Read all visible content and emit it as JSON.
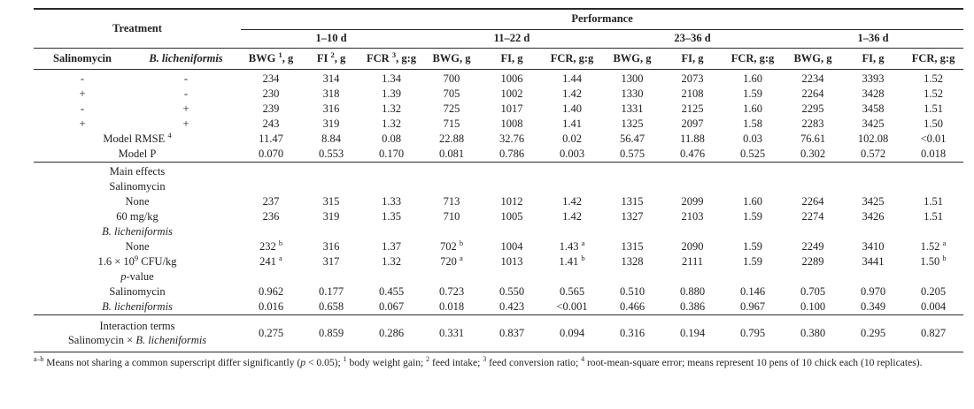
{
  "header": {
    "treatment": "Treatment",
    "performance": "Performance",
    "periods": [
      "1–10 d",
      "11–22 d",
      "23–36 d",
      "1–36 d"
    ],
    "treatment_cols": [
      "Salinomycin",
      "~{B. licheniformis}"
    ],
    "metric_cols": [
      "BWG ^{1}, g",
      "FI ^{2}, g",
      "FCR ^{3}, g:g",
      "BWG, g",
      "FI, g",
      "FCR, g:g",
      "BWG, g",
      "FI, g",
      "FCR, g:g",
      "BWG, g",
      "FI, g",
      "FCR, g:g"
    ]
  },
  "sections": {
    "treatment_means": {
      "rows": [
        {
          "sal": "-",
          "bl": "-",
          "values": [
            "234",
            "314",
            "1.34",
            "700",
            "1006",
            "1.44",
            "1300",
            "2073",
            "1.60",
            "2234",
            "3393",
            "1.52"
          ]
        },
        {
          "sal": "+",
          "bl": "-",
          "values": [
            "230",
            "318",
            "1.39",
            "705",
            "1002",
            "1.42",
            "1330",
            "2108",
            "1.59",
            "2264",
            "3428",
            "1.52"
          ]
        },
        {
          "sal": "-",
          "bl": "+",
          "values": [
            "239",
            "316",
            "1.32",
            "725",
            "1017",
            "1.40",
            "1331",
            "2125",
            "1.60",
            "2295",
            "3458",
            "1.51"
          ]
        },
        {
          "sal": "+",
          "bl": "+",
          "values": [
            "243",
            "319",
            "1.32",
            "715",
            "1008",
            "1.41",
            "1325",
            "2097",
            "1.58",
            "2283",
            "3425",
            "1.50"
          ]
        },
        {
          "label": "Model RMSE ^{4}",
          "values": [
            "11.47",
            "8.84",
            "0.08",
            "22.88",
            "32.76",
            "0.02",
            "56.47",
            "11.88",
            "0.03",
            "76.61",
            "102.08",
            "<0.01"
          ]
        },
        {
          "label": "Model P",
          "values": [
            "0.070",
            "0.553",
            "0.170",
            "0.081",
            "0.786",
            "0.003",
            "0.575",
            "0.476",
            "0.525",
            "0.302",
            "0.572",
            "0.018"
          ]
        }
      ]
    },
    "main_effects": {
      "rows": [
        {
          "label": "Main effects",
          "values": []
        },
        {
          "label": "Salinomycin",
          "values": []
        },
        {
          "label": "None",
          "values": [
            "237",
            "315",
            "1.33",
            "713",
            "1012",
            "1.42",
            "1315",
            "2099",
            "1.60",
            "2264",
            "3425",
            "1.51"
          ]
        },
        {
          "label": "60 mg/kg",
          "values": [
            "236",
            "319",
            "1.35",
            "710",
            "1005",
            "1.42",
            "1327",
            "2103",
            "1.59",
            "2274",
            "3426",
            "1.51"
          ]
        },
        {
          "label": "~{B. licheniformis}",
          "values": []
        },
        {
          "label": "None",
          "values": [
            "232 ^{b}",
            "316",
            "1.37",
            "702 ^{b}",
            "1004",
            "1.43 ^{a}",
            "1315",
            "2090",
            "1.59",
            "2249",
            "3410",
            "1.52 ^{a}"
          ]
        },
        {
          "label": "1.6 × 10^{9} CFU/kg",
          "values": [
            "241 ^{a}",
            "317",
            "1.32",
            "720 ^{a}",
            "1013",
            "1.41 ^{b}",
            "1328",
            "2111",
            "1.59",
            "2289",
            "3441",
            "1.50 ^{b}"
          ]
        },
        {
          "label": "~{p}-value",
          "values": []
        },
        {
          "label": "Salinomycin",
          "values": [
            "0.962",
            "0.177",
            "0.455",
            "0.723",
            "0.550",
            "0.565",
            "0.510",
            "0.880",
            "0.146",
            "0.705",
            "0.970",
            "0.205"
          ]
        },
        {
          "label": "~{B. licheniformis}",
          "values": [
            "0.016",
            "0.658",
            "0.067",
            "0.018",
            "0.423",
            "<0.001",
            "0.466",
            "0.386",
            "0.967",
            "0.100",
            "0.349",
            "0.004"
          ]
        }
      ]
    },
    "interaction": {
      "label_lines": [
        "Interaction terms",
        "Salinomycin × ~{B. licheniformis}"
      ],
      "values": [
        "0.275",
        "0.859",
        "0.286",
        "0.331",
        "0.837",
        "0.094",
        "0.316",
        "0.194",
        "0.795",
        "0.380",
        "0.295",
        "0.827"
      ]
    }
  },
  "footnote": {
    "text": "^{a–b} Means not sharing a common superscript differ significantly (~{p} < 0.05); ^{1} body weight gain; ^{2} feed intake; ^{3} feed conversion ratio; ^{4} root-mean-square error; means represent 10 pens of 10 chick each (10 replicates)."
  }
}
